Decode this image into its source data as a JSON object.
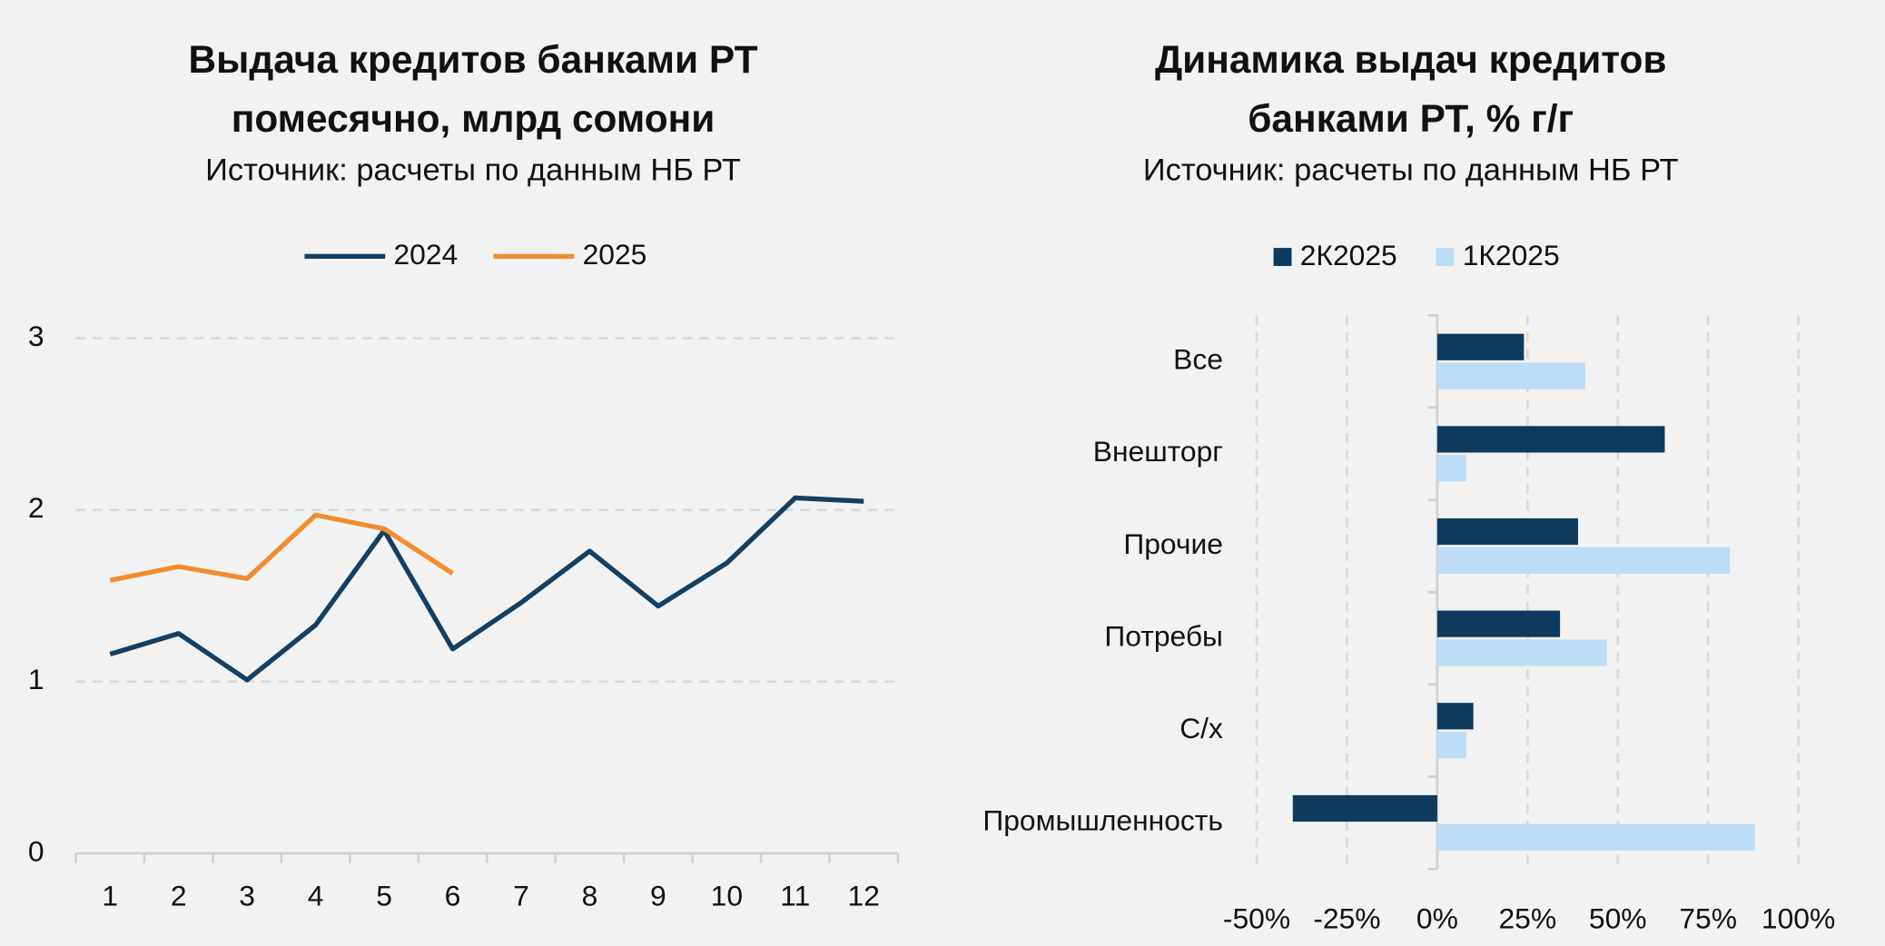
{
  "chart_data": [
    {
      "type": "line",
      "title": [
        "Выдача кредитов банками РТ",
        "помесячно, млрд сомони"
      ],
      "subtitle": "Источник: расчеты по данным НБ РТ",
      "categories": [
        "1",
        "2",
        "3",
        "4",
        "5",
        "6",
        "7",
        "8",
        "9",
        "10",
        "11",
        "12"
      ],
      "series": [
        {
          "name": "2024",
          "color": "#123f63",
          "values": [
            1.16,
            1.28,
            1.01,
            1.33,
            1.88,
            1.19,
            1.46,
            1.76,
            1.44,
            1.69,
            2.07,
            2.05
          ]
        },
        {
          "name": "2025",
          "color": "#f28c2e",
          "values": [
            1.59,
            1.67,
            1.6,
            1.97,
            1.89,
            1.63,
            null,
            null,
            null,
            null,
            null,
            null
          ]
        }
      ],
      "ylim": [
        0,
        3
      ],
      "yticks": [
        0,
        1,
        2,
        3
      ],
      "grid": true,
      "legend": "top"
    },
    {
      "type": "bar",
      "orientation": "horizontal",
      "title": [
        "Динамика выдач кредитов",
        "банками РТ, % г/г"
      ],
      "subtitle": "Источник: расчеты по данным НБ РТ",
      "categories": [
        "Все",
        "Внешторг",
        "Прочие",
        "Потребы",
        "С/х",
        "Промышленность"
      ],
      "series": [
        {
          "name": "2К2025",
          "color": "#0e3a5e",
          "values": [
            24,
            63,
            39,
            34,
            10,
            -40
          ]
        },
        {
          "name": "1К2025",
          "color": "#bddcf5",
          "values": [
            41,
            8,
            81,
            47,
            8,
            88
          ]
        }
      ],
      "xlim": [
        -50,
        100
      ],
      "xticks": [
        {
          "value": -50,
          "label": "-50%"
        },
        {
          "value": -25,
          "label": "-25%"
        },
        {
          "value": 0,
          "label": "0%"
        },
        {
          "value": 25,
          "label": "25%"
        },
        {
          "value": 50,
          "label": "50%"
        },
        {
          "value": 75,
          "label": "75%"
        },
        {
          "value": 100,
          "label": "100%"
        }
      ],
      "grid": true,
      "legend": "top"
    }
  ]
}
